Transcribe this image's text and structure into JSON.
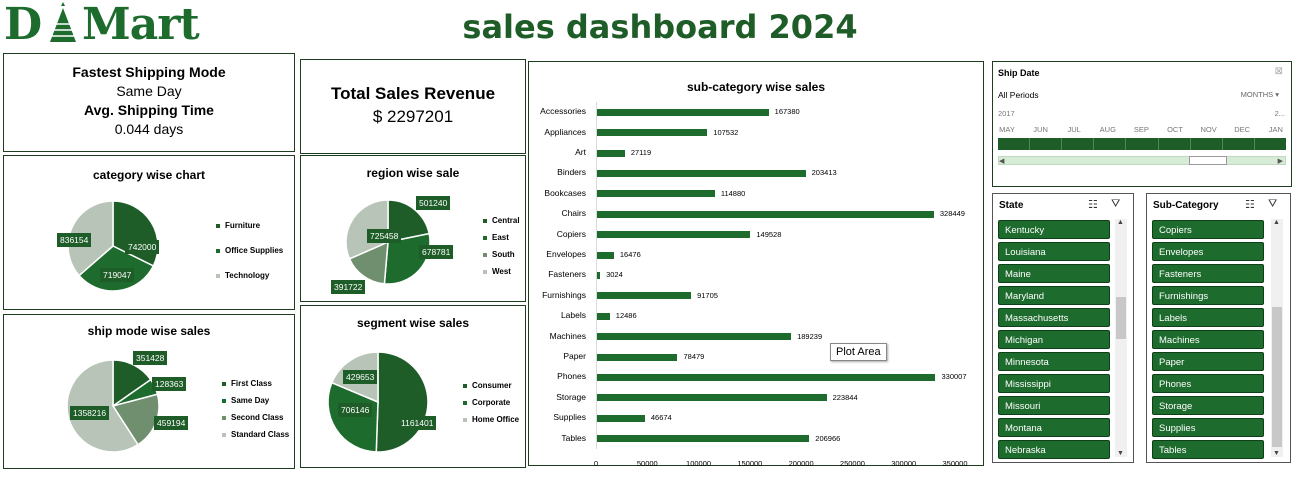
{
  "logo": {
    "text_pre": "D",
    "text_post": "Mart"
  },
  "dashboard_title": "sales dashboard 2024",
  "kpi_shipping": {
    "label1": "Fastest Shipping Mode",
    "value1": "Same Day",
    "label2": "Avg. Shipping Time",
    "value2": "0.044 days"
  },
  "kpi_revenue": {
    "label": "Total Sales Revenue",
    "value": "$ 2297201"
  },
  "tooltip": "Plot Area",
  "colors": {
    "dark_green": "#1e5c28",
    "mid_green": "#1e6b2e",
    "sage": "#6f8f6f",
    "light_sage": "#b7c4b7"
  },
  "chart_data": [
    {
      "type": "pie",
      "title": "category wise chart",
      "categories": [
        "Furniture",
        "Office Supplies",
        "Technology"
      ],
      "values": [
        742000,
        719047,
        836154
      ],
      "labels": [
        "742000",
        "719047",
        "836154"
      ],
      "colors": [
        "#1e5c28",
        "#1e6b2e",
        "#b7c4b7"
      ],
      "legend": "right"
    },
    {
      "type": "pie",
      "title": "region wise sale",
      "categories": [
        "Central",
        "East",
        "South",
        "West"
      ],
      "values": [
        501240,
        678781,
        391722,
        725458
      ],
      "labels": [
        "501240",
        "678781",
        "391722",
        "725458"
      ],
      "colors": [
        "#1e5c28",
        "#1e6b2e",
        "#6f8f6f",
        "#b7c4b7"
      ],
      "legend": "right"
    },
    {
      "type": "pie",
      "title": "ship mode wise sales",
      "categories": [
        "First Class",
        "Same Day",
        "Second Class",
        "Standard Class"
      ],
      "values": [
        351428,
        128363,
        459194,
        1358216
      ],
      "labels": [
        "351428",
        "128363",
        "459194",
        "1358216"
      ],
      "colors": [
        "#1e5c28",
        "#1e6b2e",
        "#6f8f6f",
        "#b7c4b7"
      ],
      "legend": "right"
    },
    {
      "type": "pie",
      "title": "segment wise sales",
      "categories": [
        "Consumer",
        "Corporate",
        "Home Office"
      ],
      "values": [
        1161401,
        706146,
        429653
      ],
      "labels": [
        "1161401",
        "706146",
        "429653"
      ],
      "colors": [
        "#1e5c28",
        "#1e6b2e",
        "#b7c4b7"
      ],
      "legend": "right"
    },
    {
      "type": "bar",
      "title": "sub-category wise sales",
      "orientation": "horizontal",
      "categories": [
        "Accessories",
        "Appliances",
        "Art",
        "Binders",
        "Bookcases",
        "Chairs",
        "Copiers",
        "Envelopes",
        "Fasteners",
        "Furnishings",
        "Labels",
        "Machines",
        "Paper",
        "Phones",
        "Storage",
        "Supplies",
        "Tables"
      ],
      "values": [
        167380,
        107532,
        27119,
        203413,
        114880,
        328449,
        149528,
        16476,
        3024,
        91705,
        12486,
        189239,
        78479,
        330007,
        223844,
        46674,
        206966
      ],
      "xlim": [
        0,
        350000
      ],
      "xticks": [
        "0",
        "50000",
        "100000",
        "150000",
        "200000",
        "250000",
        "300000",
        "350000"
      ],
      "grid": false
    }
  ],
  "timeline": {
    "title": "Ship Date",
    "all_periods": "All Periods",
    "period_mode": "MONTHS",
    "year_left": "2017",
    "year_right": "2...",
    "months": [
      "MAY",
      "JUN",
      "JUL",
      "AUG",
      "SEP",
      "OCT",
      "NOV",
      "DEC",
      "JAN"
    ],
    "left_arrow": "◀",
    "right_arrow": "▶"
  },
  "slicer_state": {
    "title": "State",
    "items": [
      "Kentucky",
      "Louisiana",
      "Maine",
      "Maryland",
      "Massachusetts",
      "Michigan",
      "Minnesota",
      "Mississippi",
      "Missouri",
      "Montana",
      "Nebraska"
    ]
  },
  "slicer_subcategory": {
    "title": "Sub-Category",
    "items": [
      "Copiers",
      "Envelopes",
      "Fasteners",
      "Furnishings",
      "Labels",
      "Machines",
      "Paper",
      "Phones",
      "Storage",
      "Supplies",
      "Tables"
    ]
  }
}
